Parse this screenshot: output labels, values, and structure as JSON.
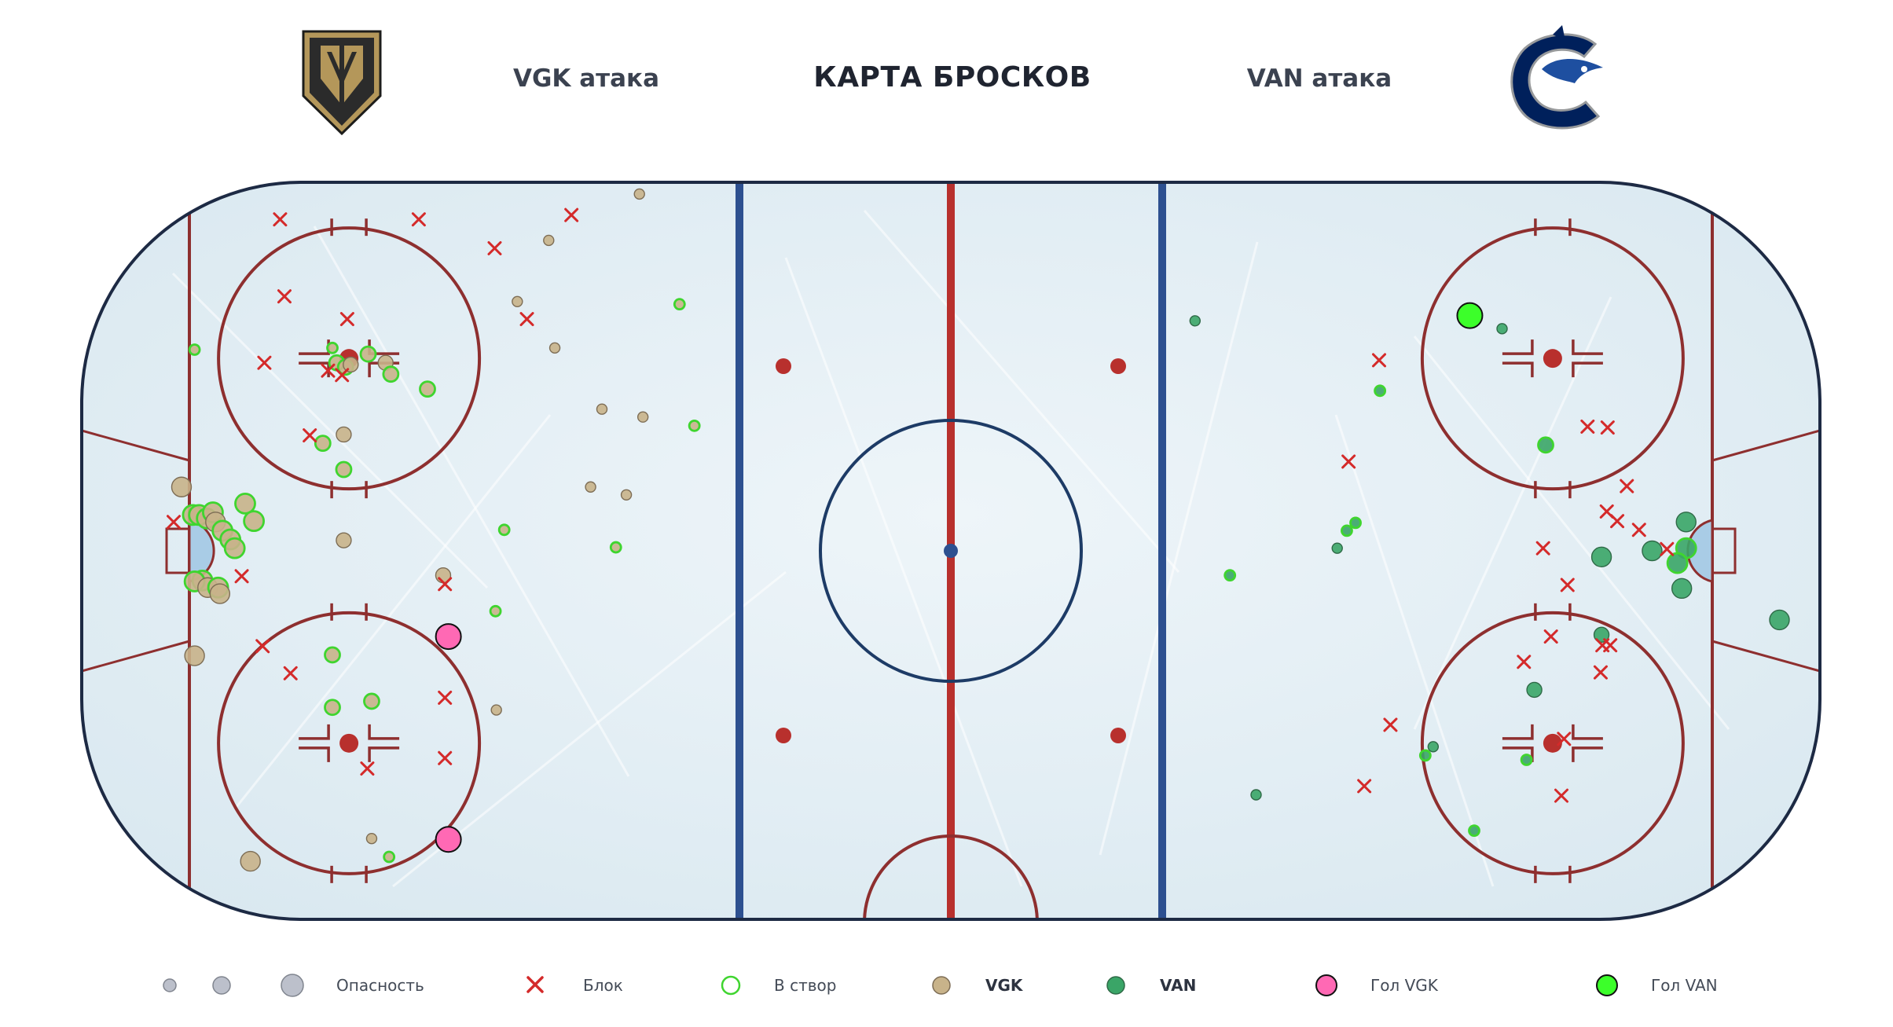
{
  "header": {
    "title": "КАРТА БРОСКОВ",
    "left_label": "VGK атака",
    "right_label": "VAN атака",
    "left_logo_icon": "vegas-golden-knights-logo",
    "right_logo_icon": "vancouver-canucks-logo"
  },
  "colors": {
    "vgk_marker": "#c8b38a",
    "van_marker": "#3aa567",
    "on_target_outline": "#3fd52f",
    "block": "#d42a2a",
    "vgk_goal": "#ff69b4",
    "van_goal": "#3cff2a",
    "rink_lines": "#8e2f2f",
    "blue_line": "#2d5090",
    "border": "#1d2a44"
  },
  "legend": {
    "danger": "Опасность",
    "block": "Блок",
    "on_target": "В створ",
    "vgk": "VGK",
    "van": "VAN",
    "vgk_goal": "Гол VGK",
    "van_goal": "Гол VAN"
  },
  "chart_data": {
    "type": "scatter",
    "title": "КАРТА БРОСКОВ",
    "x_range": [
      -100,
      100
    ],
    "y_range": [
      -42.5,
      42.5
    ],
    "size_scale": "danger",
    "series": [
      {
        "name": "VGK",
        "points": [
          {
            "x": -88.2,
            "y": 7.3,
            "size": 3,
            "on_target": false
          },
          {
            "x": -86.9,
            "y": 4.1,
            "size": 3,
            "on_target": true
          },
          {
            "x": -86.2,
            "y": 4.1,
            "size": 3,
            "on_target": true
          },
          {
            "x": -85.3,
            "y": 3.7,
            "size": 3,
            "on_target": true
          },
          {
            "x": -85.8,
            "y": -3.4,
            "size": 3,
            "on_target": true
          },
          {
            "x": -86.7,
            "y": -3.5,
            "size": 3,
            "on_target": true
          },
          {
            "x": -85.2,
            "y": -4.2,
            "size": 3,
            "on_target": false
          },
          {
            "x": -84.0,
            "y": -4.2,
            "size": 3,
            "on_target": true
          },
          {
            "x": -83.8,
            "y": -4.9,
            "size": 3,
            "on_target": false
          },
          {
            "x": -84.6,
            "y": 4.4,
            "size": 3,
            "on_target": true
          },
          {
            "x": -84.3,
            "y": 3.3,
            "size": 3,
            "on_target": false
          },
          {
            "x": -83.5,
            "y": 2.3,
            "size": 3,
            "on_target": true
          },
          {
            "x": -82.6,
            "y": 1.3,
            "size": 3,
            "on_target": true
          },
          {
            "x": -82.1,
            "y": 0.3,
            "size": 3,
            "on_target": true
          },
          {
            "x": -80.9,
            "y": 5.4,
            "size": 3,
            "on_target": true
          },
          {
            "x": -79.9,
            "y": 3.4,
            "size": 3,
            "on_target": true
          },
          {
            "x": -86.7,
            "y": -12.0,
            "size": 3,
            "on_target": false
          },
          {
            "x": -86.7,
            "y": 23.0,
            "size": 1,
            "on_target": true
          },
          {
            "x": -80.3,
            "y": -35.5,
            "size": 3,
            "on_target": false
          },
          {
            "x": -70.9,
            "y": 23.2,
            "size": 1,
            "on_target": true
          },
          {
            "x": -70.4,
            "y": 21.5,
            "size": 2,
            "on_target": true
          },
          {
            "x": -69.4,
            "y": 21.0,
            "size": 2,
            "on_target": true
          },
          {
            "x": -68.8,
            "y": 21.3,
            "size": 2,
            "on_target": false
          },
          {
            "x": -66.8,
            "y": 22.5,
            "size": 2,
            "on_target": true
          },
          {
            "x": -64.8,
            "y": 21.5,
            "size": 2,
            "on_target": false
          },
          {
            "x": -64.2,
            "y": 20.2,
            "size": 2,
            "on_target": true
          },
          {
            "x": -60.0,
            "y": 18.5,
            "size": 2,
            "on_target": true
          },
          {
            "x": -72.0,
            "y": 12.3,
            "size": 2,
            "on_target": true
          },
          {
            "x": -69.6,
            "y": 13.3,
            "size": 2,
            "on_target": false
          },
          {
            "x": -69.6,
            "y": 9.3,
            "size": 2,
            "on_target": true
          },
          {
            "x": -69.6,
            "y": 1.2,
            "size": 2,
            "on_target": false
          },
          {
            "x": -70.9,
            "y": -11.9,
            "size": 2,
            "on_target": true
          },
          {
            "x": -70.9,
            "y": -17.9,
            "size": 2,
            "on_target": true
          },
          {
            "x": -66.4,
            "y": -17.2,
            "size": 2,
            "on_target": true
          },
          {
            "x": -58.2,
            "y": -2.8,
            "size": 2,
            "on_target": false
          },
          {
            "x": -66.4,
            "y": -32.9,
            "size": 1,
            "on_target": false
          },
          {
            "x": -64.4,
            "y": -35.0,
            "size": 1,
            "on_target": true
          },
          {
            "x": -51.2,
            "y": 2.4,
            "size": 1,
            "on_target": true
          },
          {
            "x": -52.2,
            "y": -6.9,
            "size": 1,
            "on_target": true
          },
          {
            "x": -52.1,
            "y": -18.2,
            "size": 1,
            "on_target": false
          },
          {
            "x": -49.7,
            "y": 28.5,
            "size": 1,
            "on_target": false
          },
          {
            "x": -45.4,
            "y": 23.2,
            "size": 1,
            "on_target": false
          },
          {
            "x": -46.1,
            "y": 35.5,
            "size": 1,
            "on_target": false
          },
          {
            "x": -40.0,
            "y": 16.2,
            "size": 1,
            "on_target": false
          },
          {
            "x": -41.3,
            "y": 7.3,
            "size": 1,
            "on_target": false
          },
          {
            "x": -37.2,
            "y": 6.4,
            "size": 1,
            "on_target": false
          },
          {
            "x": -35.3,
            "y": 15.3,
            "size": 1,
            "on_target": false
          },
          {
            "x": -35.7,
            "y": 40.8,
            "size": 1,
            "on_target": false
          },
          {
            "x": -31.1,
            "y": 28.2,
            "size": 1,
            "on_target": true
          },
          {
            "x": -29.4,
            "y": 14.3,
            "size": 1,
            "on_target": true
          },
          {
            "x": -38.4,
            "y": 0.4,
            "size": 1,
            "on_target": true
          }
        ]
      },
      {
        "name": "VAN",
        "points": [
          {
            "x": 84.3,
            "y": 3.3,
            "size": 3,
            "on_target": false
          },
          {
            "x": 84.3,
            "y": 0.3,
            "size": 3,
            "on_target": true
          },
          {
            "x": 83.3,
            "y": -1.4,
            "size": 3,
            "on_target": true
          },
          {
            "x": 83.8,
            "y": -4.3,
            "size": 3,
            "on_target": false
          },
          {
            "x": 80.4,
            "y": 0.0,
            "size": 3,
            "on_target": false
          },
          {
            "x": 74.6,
            "y": -0.7,
            "size": 3,
            "on_target": false
          },
          {
            "x": 95.0,
            "y": -7.9,
            "size": 3,
            "on_target": false
          },
          {
            "x": 74.6,
            "y": -9.6,
            "size": 2,
            "on_target": false
          },
          {
            "x": 68.2,
            "y": 12.1,
            "size": 2,
            "on_target": true
          },
          {
            "x": 66.9,
            "y": -15.9,
            "size": 2,
            "on_target": false
          },
          {
            "x": 66.0,
            "y": -23.9,
            "size": 1,
            "on_target": true
          },
          {
            "x": 63.2,
            "y": 25.4,
            "size": 1,
            "on_target": false
          },
          {
            "x": 60.0,
            "y": -32.0,
            "size": 1,
            "on_target": true
          },
          {
            "x": 55.3,
            "y": -22.4,
            "size": 1,
            "on_target": false
          },
          {
            "x": 54.4,
            "y": -23.4,
            "size": 1,
            "on_target": true
          },
          {
            "x": 49.2,
            "y": 18.3,
            "size": 1,
            "on_target": true
          },
          {
            "x": 46.4,
            "y": 3.2,
            "size": 1,
            "on_target": true
          },
          {
            "x": 45.4,
            "y": 2.3,
            "size": 1,
            "on_target": true
          },
          {
            "x": 44.3,
            "y": 0.3,
            "size": 1,
            "on_target": false
          },
          {
            "x": 32.0,
            "y": -2.8,
            "size": 1,
            "on_target": true
          },
          {
            "x": 28.0,
            "y": 26.3,
            "size": 1,
            "on_target": false
          },
          {
            "x": 35.0,
            "y": -27.9,
            "size": 1,
            "on_target": false
          }
        ]
      },
      {
        "name": "Блок",
        "points": [
          {
            "x": -89.1,
            "y": 3.3
          },
          {
            "x": -76.9,
            "y": 37.9
          },
          {
            "x": -76.4,
            "y": 29.1
          },
          {
            "x": -78.7,
            "y": 21.5
          },
          {
            "x": -73.5,
            "y": 13.2
          },
          {
            "x": -71.4,
            "y": 20.6
          },
          {
            "x": -69.2,
            "y": 26.5
          },
          {
            "x": -69.8,
            "y": 20.1
          },
          {
            "x": -81.3,
            "y": -2.9
          },
          {
            "x": -78.9,
            "y": -10.9
          },
          {
            "x": -75.7,
            "y": -14.0
          },
          {
            "x": -66.9,
            "y": -24.9
          },
          {
            "x": -61.0,
            "y": 37.9
          },
          {
            "x": -58.0,
            "y": -3.8
          },
          {
            "x": -58.0,
            "y": -16.8
          },
          {
            "x": -58.0,
            "y": -23.7
          },
          {
            "x": -52.3,
            "y": 34.6
          },
          {
            "x": -48.6,
            "y": 26.5
          },
          {
            "x": -43.5,
            "y": 38.4
          },
          {
            "x": 49.1,
            "y": 21.8
          },
          {
            "x": 45.6,
            "y": 10.2
          },
          {
            "x": 73.0,
            "y": 14.2
          },
          {
            "x": 75.3,
            "y": 14.1
          },
          {
            "x": 77.5,
            "y": 7.4
          },
          {
            "x": 75.2,
            "y": 4.5
          },
          {
            "x": 76.4,
            "y": 3.4
          },
          {
            "x": 78.9,
            "y": 2.4
          },
          {
            "x": 67.9,
            "y": 0.3
          },
          {
            "x": 82.1,
            "y": 0.2
          },
          {
            "x": 70.7,
            "y": -3.9
          },
          {
            "x": 68.8,
            "y": -9.8
          },
          {
            "x": 74.7,
            "y": -10.8
          },
          {
            "x": 75.6,
            "y": -10.8
          },
          {
            "x": 65.7,
            "y": -12.7
          },
          {
            "x": 74.5,
            "y": -13.9
          },
          {
            "x": 50.4,
            "y": -19.9
          },
          {
            "x": 70.3,
            "y": -21.5
          },
          {
            "x": 47.4,
            "y": -26.9
          },
          {
            "x": 70.0,
            "y": -28.0
          }
        ]
      },
      {
        "name": "Гол VGK",
        "points": [
          {
            "x": -57.6,
            "y": -9.8
          },
          {
            "x": -57.6,
            "y": -33.0
          }
        ]
      },
      {
        "name": "Гол VAN",
        "points": [
          {
            "x": 59.5,
            "y": 26.9
          }
        ]
      }
    ]
  }
}
